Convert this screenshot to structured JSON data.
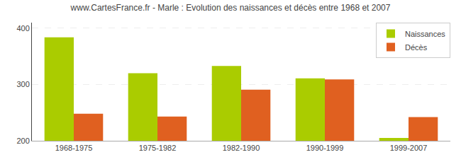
{
  "chart_data": {
    "type": "bar",
    "title": "www.CartesFrance.fr - Marle : Evolution des naissances et décès entre 1968 et 2007",
    "categories": [
      "1968-1975",
      "1975-1982",
      "1982-1990",
      "1990-1999",
      "1999-2007"
    ],
    "series": [
      {
        "name": "Naissances",
        "color": "#aacc00",
        "values": [
          384,
          320,
          333,
          311,
          205
        ]
      },
      {
        "name": "Décès",
        "color": "#e06020",
        "values": [
          248,
          243,
          291,
          309,
          242
        ]
      }
    ],
    "ylim": [
      200,
      410
    ],
    "yticks": [
      200,
      300,
      400
    ],
    "grid": true,
    "legend": "upper right"
  }
}
